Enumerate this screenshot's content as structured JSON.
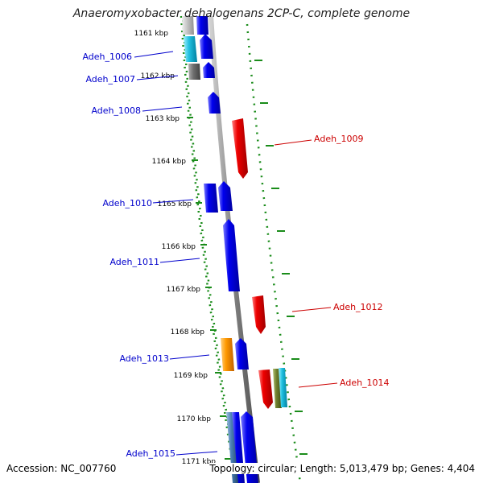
{
  "title": "Anaeromyxobacter dehalogenans 2CP-C, complete genome",
  "footer": {
    "accession": "Accession: NC_007760",
    "stats": "Topology: circular; Length: 5,013,479 bp; Genes: 4,404"
  },
  "colors": {
    "backbone": "#808080",
    "tick": "#1a8c1a",
    "forward_gene": "#0000ee",
    "reverse_gene": "#ee0000",
    "forward_label": "#0000cc",
    "reverse_label": "#cc0000"
  },
  "scale_labels": [
    "1161 kbp",
    "1162 kbp",
    "1163 kbp",
    "1164 kbp",
    "1165 kbp",
    "1166 kbp",
    "1167 kbp",
    "1168 kbp",
    "1169 kbp",
    "1170 kbp",
    "1171 kbp"
  ],
  "genes": [
    {
      "label": "Adeh_1006",
      "strand": "forward"
    },
    {
      "label": "Adeh_1007",
      "strand": "forward"
    },
    {
      "label": "Adeh_1008",
      "strand": "forward"
    },
    {
      "label": "Adeh_1009",
      "strand": "reverse"
    },
    {
      "label": "Adeh_1010",
      "strand": "forward"
    },
    {
      "label": "Adeh_1011",
      "strand": "forward"
    },
    {
      "label": "Adeh_1012",
      "strand": "reverse"
    },
    {
      "label": "Adeh_1013",
      "strand": "forward"
    },
    {
      "label": "Adeh_1014",
      "strand": "reverse"
    },
    {
      "label": "Adeh_1015",
      "strand": "forward"
    }
  ]
}
